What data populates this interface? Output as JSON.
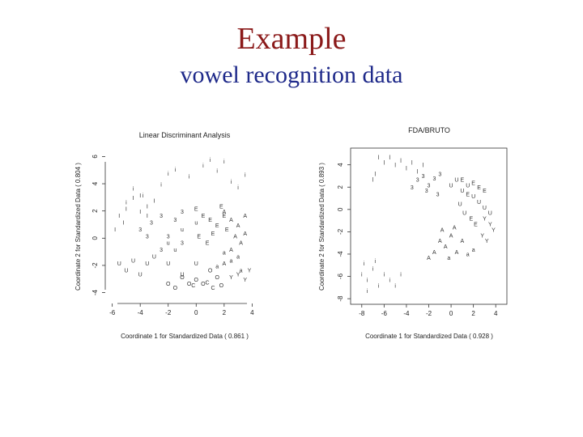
{
  "slide": {
    "title": "Example",
    "subtitle": "vowel recognition data"
  },
  "chart_data": [
    {
      "type": "scatter",
      "title": "Linear Discriminant Analysis",
      "xlabel": "Coordinate 1 for Standardized Data ( 0.861 )",
      "ylabel": "Coordinate 2 for Standardized Data ( 0.804 )",
      "xlim": [
        -6.5,
        4.5
      ],
      "ylim": [
        -4.5,
        6.5
      ],
      "xticks": [
        "-6",
        "-4",
        "-2",
        "0",
        "2",
        "4"
      ],
      "yticks": [
        "-4",
        "-2",
        "0",
        "2",
        "4",
        "6"
      ],
      "grid": false,
      "series": [
        {
          "name": "i",
          "values": [
            [
              -4.5,
              3.5
            ],
            [
              -3.8,
              3.0
            ],
            [
              -2.0,
              4.6
            ],
            [
              -0.5,
              4.4
            ],
            [
              0.5,
              5.2
            ],
            [
              1.0,
              5.6
            ],
            [
              1.5,
              4.8
            ],
            [
              2.0,
              5.5
            ],
            [
              2.5,
              4.0
            ],
            [
              3.0,
              3.6
            ],
            [
              3.5,
              4.5
            ],
            [
              -5.0,
              2.5
            ],
            [
              -2.5,
              3.8
            ],
            [
              -1.5,
              4.9
            ]
          ]
        },
        {
          "name": "I",
          "values": [
            [
              -5.5,
              1.5
            ],
            [
              -5.0,
              2.0
            ],
            [
              -4.5,
              2.8
            ],
            [
              -4.0,
              1.8
            ],
            [
              -3.5,
              2.2
            ],
            [
              -3.0,
              2.6
            ],
            [
              -3.5,
              1.5
            ],
            [
              -5.8,
              0.5
            ],
            [
              -4.0,
              3.0
            ],
            [
              -5.2,
              1.0
            ]
          ]
        },
        {
          "name": "3",
          "values": [
            [
              -4.0,
              0.5
            ],
            [
              -3.2,
              1.0
            ],
            [
              -2.5,
              1.5
            ],
            [
              -2.0,
              0.0
            ],
            [
              -1.5,
              1.2
            ],
            [
              -1.0,
              -0.5
            ],
            [
              -2.5,
              -1.0
            ],
            [
              -3.5,
              0.0
            ],
            [
              -1.0,
              1.8
            ]
          ]
        },
        {
          "name": "E",
          "values": [
            [
              0.0,
              2.0
            ],
            [
              0.5,
              1.5
            ],
            [
              1.0,
              1.2
            ],
            [
              1.5,
              0.8
            ],
            [
              2.0,
              1.5
            ],
            [
              1.2,
              0.2
            ],
            [
              0.8,
              -0.5
            ],
            [
              2.2,
              0.5
            ],
            [
              0.2,
              0.0
            ],
            [
              1.8,
              2.2
            ]
          ]
        },
        {
          "name": "A",
          "values": [
            [
              2.0,
              1.8
            ],
            [
              2.5,
              1.2
            ],
            [
              3.0,
              0.8
            ],
            [
              3.5,
              1.5
            ],
            [
              2.8,
              0.0
            ],
            [
              3.2,
              -0.5
            ],
            [
              2.5,
              -1.0
            ],
            [
              2.0,
              -2.0
            ],
            [
              3.5,
              0.2
            ]
          ]
        },
        {
          "name": "a",
          "values": [
            [
              2.5,
              -1.8
            ],
            [
              3.0,
              -1.5
            ],
            [
              3.2,
              -2.5
            ],
            [
              1.5,
              -2.2
            ],
            [
              2.0,
              -1.2
            ]
          ]
        },
        {
          "name": "Y",
          "values": [
            [
              2.5,
              -3.0
            ],
            [
              3.0,
              -2.8
            ],
            [
              3.5,
              -3.2
            ],
            [
              3.8,
              -2.5
            ]
          ]
        },
        {
          "name": "U",
          "values": [
            [
              -5.5,
              -2.0
            ],
            [
              -5.0,
              -2.5
            ],
            [
              -4.5,
              -1.8
            ],
            [
              -3.5,
              -2.0
            ],
            [
              -3.0,
              -1.5
            ],
            [
              -2.0,
              -2.0
            ],
            [
              -1.0,
              -2.8
            ],
            [
              0.0,
              -2.0
            ],
            [
              -4.0,
              -2.8
            ]
          ]
        },
        {
          "name": "u",
          "values": [
            [
              -2.0,
              -0.5
            ],
            [
              -1.5,
              -1.0
            ],
            [
              -1.0,
              0.5
            ],
            [
              0.0,
              1.0
            ]
          ]
        },
        {
          "name": "O",
          "values": [
            [
              -1.0,
              -3.0
            ],
            [
              -0.5,
              -3.5
            ],
            [
              0.0,
              -3.2
            ],
            [
              0.5,
              -3.5
            ],
            [
              1.0,
              -2.5
            ],
            [
              1.5,
              -3.0
            ],
            [
              -2.0,
              -3.5
            ],
            [
              -1.5,
              -3.8
            ],
            [
              1.8,
              -3.6
            ]
          ]
        },
        {
          "name": "C",
          "values": [
            [
              0.8,
              -3.4
            ],
            [
              1.2,
              -3.8
            ],
            [
              -0.2,
              -3.6
            ]
          ]
        }
      ]
    },
    {
      "type": "scatter",
      "title": "FDA/BRUTO",
      "xlabel": "Coordinate 1 for Standardized Data ( 0.928 )",
      "ylabel": "Coordinate 2 for Standardized Data ( 0.893 )",
      "xlim": [
        -9,
        5
      ],
      "ylim": [
        -8.5,
        5.5
      ],
      "xticks": [
        "-8",
        "-6",
        "-4",
        "-2",
        "0",
        "2",
        "4"
      ],
      "yticks": [
        "-8",
        "-6",
        "-4",
        "-2",
        "0",
        "2",
        "4"
      ],
      "grid": false,
      "series": [
        {
          "name": "i",
          "values": [
            [
              -8.0,
              -6.0
            ],
            [
              -7.5,
              -6.5
            ],
            [
              -7.0,
              -5.5
            ],
            [
              -6.5,
              -7.0
            ],
            [
              -6.0,
              -6.0
            ],
            [
              -5.5,
              -6.5
            ],
            [
              -7.5,
              -7.5
            ],
            [
              -6.8,
              -4.8
            ],
            [
              -5.0,
              -7.0
            ],
            [
              -4.5,
              -6.0
            ],
            [
              -7.8,
              -5.0
            ]
          ]
        },
        {
          "name": "l",
          "values": [
            [
              -6.5,
              4.5
            ],
            [
              -6.0,
              4.0
            ],
            [
              -5.5,
              4.5
            ],
            [
              -5.0,
              3.8
            ],
            [
              -4.5,
              4.2
            ],
            [
              -4.0,
              3.5
            ],
            [
              -3.5,
              4.0
            ],
            [
              -3.0,
              3.2
            ],
            [
              -2.5,
              3.8
            ],
            [
              -6.8,
              3.0
            ],
            [
              -7.0,
              2.5
            ]
          ]
        },
        {
          "name": "3",
          "values": [
            [
              -3.0,
              2.5
            ],
            [
              -2.5,
              2.8
            ],
            [
              -2.0,
              2.0
            ],
            [
              -1.5,
              2.6
            ],
            [
              -1.0,
              3.0
            ],
            [
              -2.2,
              1.5
            ],
            [
              -3.5,
              1.8
            ],
            [
              -1.2,
              1.2
            ]
          ]
        },
        {
          "name": "U",
          "values": [
            [
              0.0,
              2.0
            ],
            [
              0.5,
              2.5
            ],
            [
              1.0,
              1.5
            ],
            [
              1.5,
              2.0
            ],
            [
              2.0,
              1.0
            ],
            [
              2.5,
              0.5
            ],
            [
              3.0,
              0.0
            ],
            [
              3.5,
              -0.5
            ],
            [
              1.2,
              -0.5
            ],
            [
              0.8,
              0.3
            ]
          ]
        },
        {
          "name": "E",
          "values": [
            [
              1.0,
              2.5
            ],
            [
              1.5,
              1.2
            ],
            [
              2.0,
              2.2
            ],
            [
              2.5,
              1.8
            ],
            [
              3.0,
              1.5
            ],
            [
              1.8,
              -1.0
            ],
            [
              2.2,
              -1.5
            ]
          ]
        },
        {
          "name": "Y",
          "values": [
            [
              3.0,
              -1.0
            ],
            [
              3.5,
              -1.5
            ],
            [
              3.8,
              -2.0
            ],
            [
              2.8,
              -2.5
            ],
            [
              3.2,
              -3.0
            ]
          ]
        },
        {
          "name": "A",
          "values": [
            [
              -1.0,
              -3.0
            ],
            [
              -0.5,
              -3.5
            ],
            [
              0.0,
              -2.5
            ],
            [
              0.5,
              -4.0
            ],
            [
              1.0,
              -3.0
            ],
            [
              -1.5,
              -4.0
            ],
            [
              -2.0,
              -4.5
            ],
            [
              -0.8,
              -2.0
            ],
            [
              0.3,
              -1.8
            ]
          ]
        },
        {
          "name": "a",
          "values": [
            [
              1.5,
              -4.2
            ],
            [
              2.0,
              -3.8
            ],
            [
              -0.2,
              -4.5
            ]
          ]
        }
      ]
    }
  ]
}
